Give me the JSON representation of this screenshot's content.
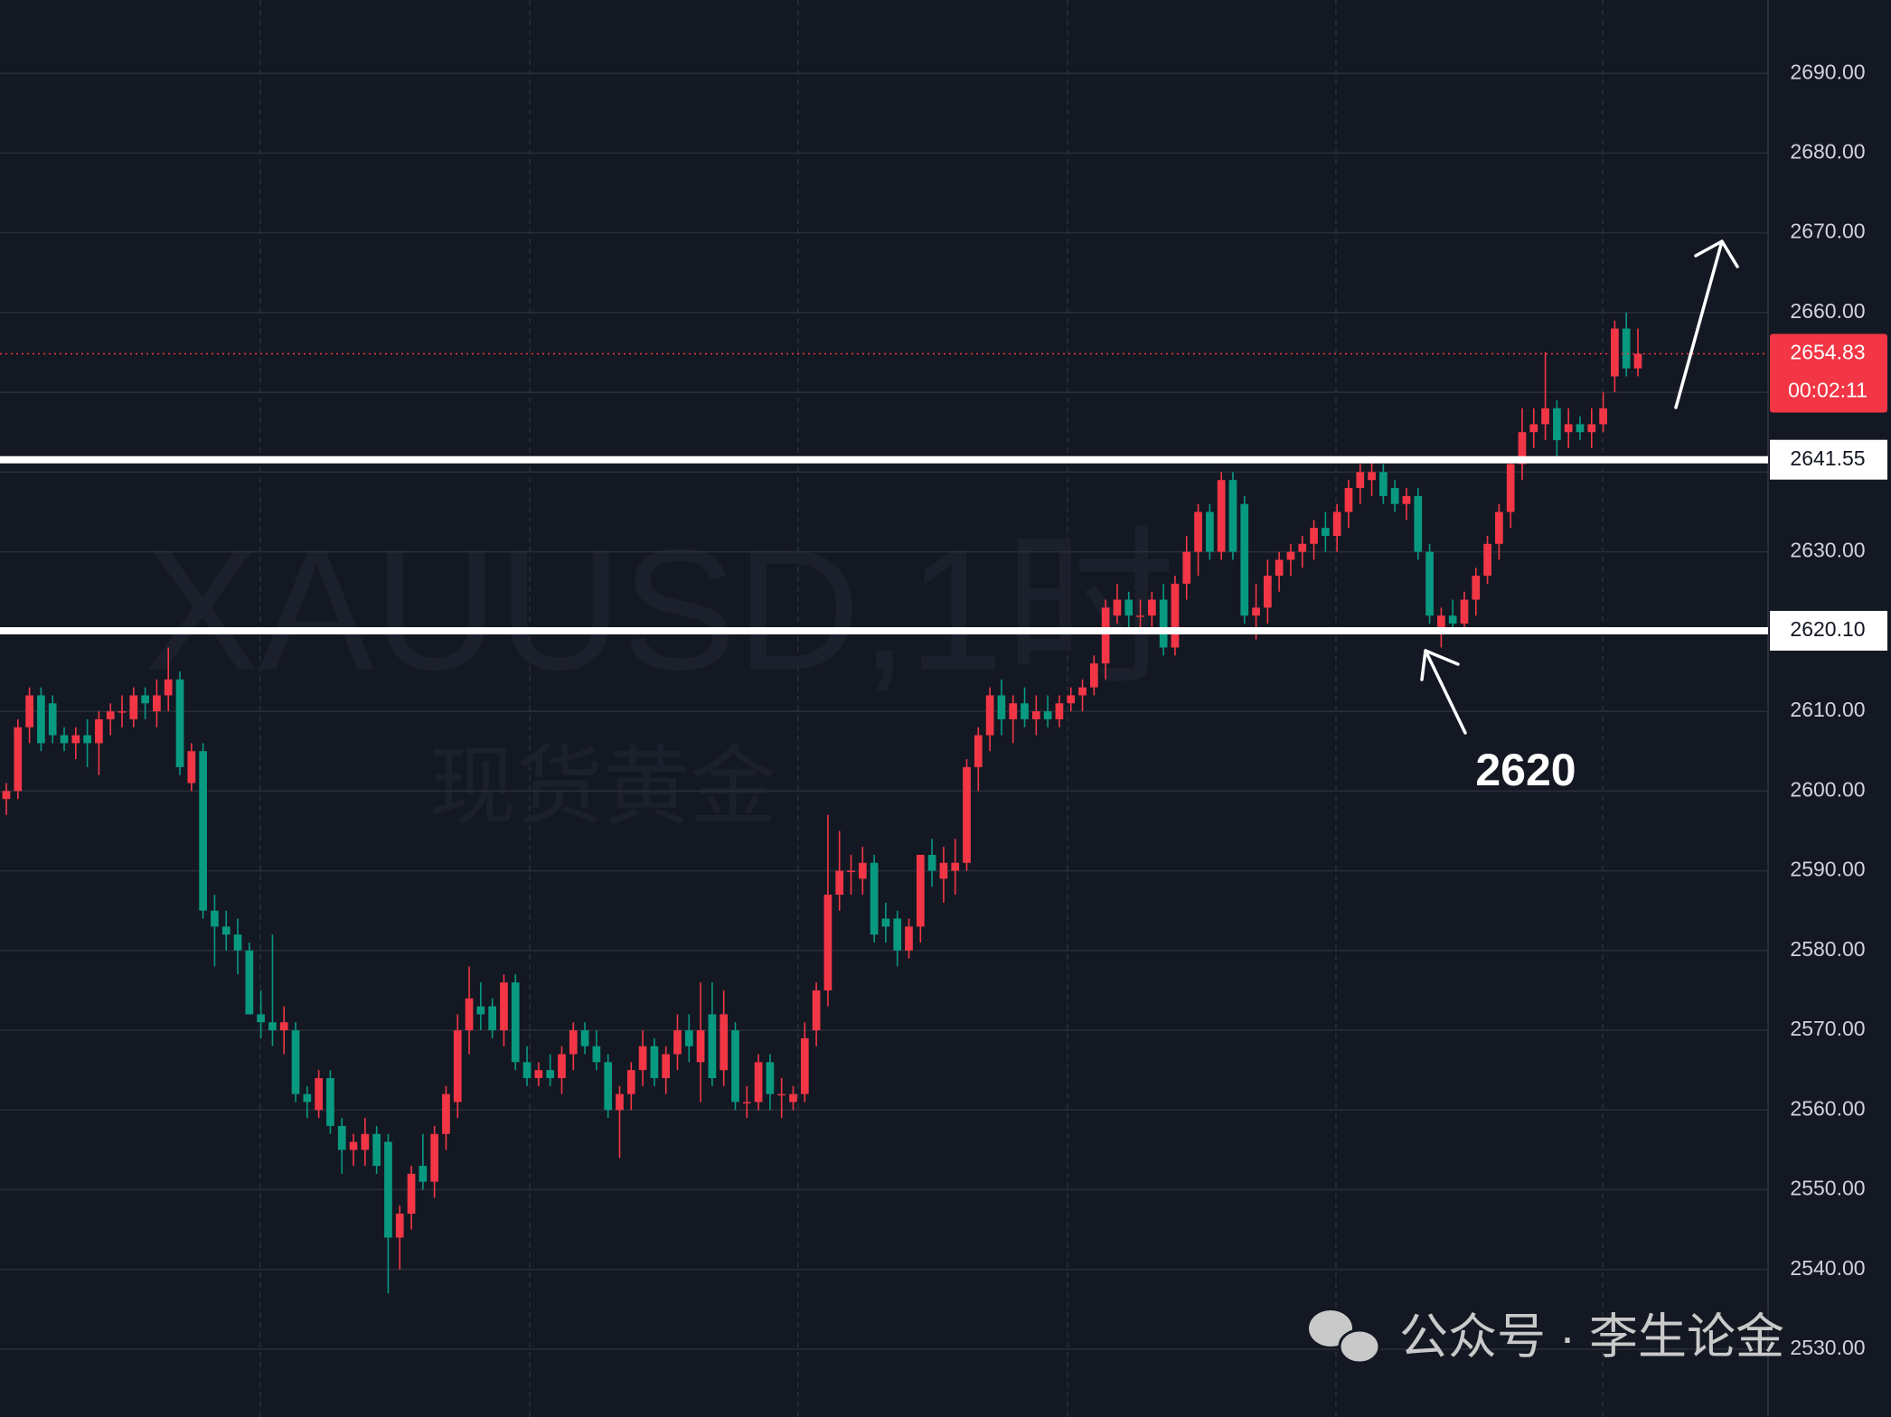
{
  "chart_data": {
    "type": "candlestick",
    "watermark": {
      "symbol": "XAUUSD,1时",
      "name": "现货黄金"
    },
    "annotation": "2620",
    "footer": "公众号 · 李生论金",
    "up_color": "#f23645",
    "down_color": "#089981",
    "ylim": [
      2521.5,
      2699.2
    ],
    "yticks": [
      {
        "value": 2530,
        "label": "2530.00"
      },
      {
        "value": 2540,
        "label": "2540.00"
      },
      {
        "value": 2550,
        "label": "2550.00"
      },
      {
        "value": 2560,
        "label": "2560.00"
      },
      {
        "value": 2570,
        "label": "2570.00"
      },
      {
        "value": 2580,
        "label": "2580.00"
      },
      {
        "value": 2590,
        "label": "2590.00"
      },
      {
        "value": 2600,
        "label": "2600.00"
      },
      {
        "value": 2610,
        "label": "2610.00"
      },
      {
        "value": 2620,
        "label": "2620.00"
      },
      {
        "value": 2630,
        "label": "2630.00"
      },
      {
        "value": 2640,
        "label": "2640.00"
      },
      {
        "value": 2650,
        "label": "2650.00"
      },
      {
        "value": 2660,
        "label": "2660.00"
      },
      {
        "value": 2670,
        "label": "2670.00"
      },
      {
        "value": 2680,
        "label": "2680.00"
      },
      {
        "value": 2690,
        "label": "2690.00"
      }
    ],
    "grid": true,
    "levels": [
      {
        "value": 2641.55
      },
      {
        "value": 2620.1,
        "label": "2620.10"
      }
    ],
    "last_price": {
      "value": 2654.83,
      "countdown": "00:02:11"
    },
    "ohlc": [
      [
        2599,
        2601,
        2597,
        2600
      ],
      [
        2600,
        2609,
        2599,
        2608
      ],
      [
        2608,
        2613,
        2606,
        2612
      ],
      [
        2612,
        2613,
        2605,
        2606
      ],
      [
        2611,
        2612,
        2606,
        2607
      ],
      [
        2607,
        2608,
        2605,
        2606
      ],
      [
        2606,
        2608,
        2604,
        2607
      ],
      [
        2607,
        2609,
        2603,
        2606
      ],
      [
        2606,
        2610,
        2602,
        2609
      ],
      [
        2609,
        2611,
        2607,
        2610
      ],
      [
        2610,
        2612,
        2608,
        2610
      ],
      [
        2609,
        2613,
        2608,
        2612
      ],
      [
        2612,
        2613,
        2609,
        2611
      ],
      [
        2610,
        2614,
        2608,
        2612
      ],
      [
        2612,
        2618,
        2610,
        2614
      ],
      [
        2614,
        2615,
        2602,
        2603
      ],
      [
        2601,
        2606,
        2600,
        2605
      ],
      [
        2605,
        2606,
        2584,
        2585
      ],
      [
        2585,
        2587,
        2578,
        2583
      ],
      [
        2583,
        2585,
        2580,
        2582
      ],
      [
        2582,
        2584,
        2577,
        2580
      ],
      [
        2580,
        2581,
        2572,
        2572
      ],
      [
        2572,
        2575,
        2569,
        2571
      ],
      [
        2571,
        2582,
        2568,
        2570
      ],
      [
        2570,
        2573,
        2567,
        2571
      ],
      [
        2570,
        2571,
        2561,
        2562
      ],
      [
        2562,
        2563,
        2559,
        2561
      ],
      [
        2560,
        2565,
        2559,
        2564
      ],
      [
        2564,
        2565,
        2557,
        2558
      ],
      [
        2558,
        2559,
        2552,
        2555
      ],
      [
        2555,
        2557,
        2553,
        2556
      ],
      [
        2555,
        2559,
        2553,
        2557
      ],
      [
        2557,
        2558,
        2552,
        2553
      ],
      [
        2556,
        2557,
        2537,
        2544
      ],
      [
        2544,
        2548,
        2540,
        2547
      ],
      [
        2547,
        2553,
        2545,
        2552
      ],
      [
        2553,
        2557,
        2550,
        2551
      ],
      [
        2551,
        2558,
        2549,
        2557
      ],
      [
        2557,
        2563,
        2555,
        2562
      ],
      [
        2561,
        2572,
        2559,
        2570
      ],
      [
        2570,
        2578,
        2567,
        2574
      ],
      [
        2573,
        2576,
        2570,
        2572
      ],
      [
        2573,
        2574,
        2569,
        2570
      ],
      [
        2570,
        2577,
        2568,
        2576
      ],
      [
        2576,
        2577,
        2565,
        2566
      ],
      [
        2566,
        2568,
        2563,
        2564
      ],
      [
        2564,
        2566,
        2563,
        2565
      ],
      [
        2565,
        2567,
        2563,
        2564
      ],
      [
        2564,
        2568,
        2562,
        2567
      ],
      [
        2567,
        2571,
        2565,
        2570
      ],
      [
        2570,
        2571,
        2567,
        2568
      ],
      [
        2568,
        2570,
        2565,
        2566
      ],
      [
        2566,
        2567,
        2559,
        2560
      ],
      [
        2560,
        2563,
        2554,
        2562
      ],
      [
        2562,
        2566,
        2560,
        2565
      ],
      [
        2565,
        2570,
        2563,
        2568
      ],
      [
        2568,
        2569,
        2563,
        2564
      ],
      [
        2564,
        2568,
        2562,
        2567
      ],
      [
        2567,
        2572,
        2565,
        2570
      ],
      [
        2570,
        2572,
        2566,
        2568
      ],
      [
        2566,
        2576,
        2561,
        2570
      ],
      [
        2572,
        2576,
        2563,
        2564
      ],
      [
        2565,
        2575,
        2563,
        2572
      ],
      [
        2570,
        2571,
        2560,
        2561
      ],
      [
        2561,
        2563,
        2559,
        2561
      ],
      [
        2561,
        2567,
        2560,
        2566
      ],
      [
        2566,
        2567,
        2560,
        2562
      ],
      [
        2562,
        2564,
        2559,
        2562
      ],
      [
        2561,
        2563,
        2560,
        2562
      ],
      [
        2562,
        2571,
        2561,
        2569
      ],
      [
        2570,
        2576,
        2568,
        2575
      ],
      [
        2575,
        2597,
        2573,
        2587
      ],
      [
        2587,
        2595,
        2585,
        2590
      ],
      [
        2590,
        2592,
        2587,
        2590
      ],
      [
        2589,
        2593,
        2587,
        2591
      ],
      [
        2591,
        2592,
        2581,
        2582
      ],
      [
        2584,
        2586,
        2581,
        2583
      ],
      [
        2584,
        2585,
        2578,
        2580
      ],
      [
        2580,
        2584,
        2579,
        2583
      ],
      [
        2583,
        2592,
        2581,
        2592
      ],
      [
        2592,
        2594,
        2588,
        2590
      ],
      [
        2589,
        2593,
        2586,
        2591
      ],
      [
        2590,
        2594,
        2587,
        2591
      ],
      [
        2591,
        2604,
        2590,
        2603
      ],
      [
        2603,
        2608,
        2600,
        2607
      ],
      [
        2607,
        2613,
        2605,
        2612
      ],
      [
        2612,
        2614,
        2607,
        2609
      ],
      [
        2609,
        2612,
        2606,
        2611
      ],
      [
        2611,
        2613,
        2608,
        2609
      ],
      [
        2609,
        2612,
        2607,
        2610
      ],
      [
        2610,
        2612,
        2608,
        2609
      ],
      [
        2609,
        2612,
        2608,
        2611
      ],
      [
        2611,
        2613,
        2610,
        2612
      ],
      [
        2612,
        2614,
        2610,
        2613
      ],
      [
        2613,
        2617,
        2612,
        2616
      ],
      [
        2616,
        2624,
        2614,
        2623
      ],
      [
        2622,
        2626,
        2621,
        2624
      ],
      [
        2624,
        2625,
        2620,
        2622
      ],
      [
        2622,
        2624,
        2620,
        2622
      ],
      [
        2622,
        2625,
        2620,
        2624
      ],
      [
        2624,
        2626,
        2617,
        2618
      ],
      [
        2618,
        2627,
        2617,
        2626
      ],
      [
        2626,
        2632,
        2624,
        2630
      ],
      [
        2630,
        2636,
        2627,
        2635
      ],
      [
        2635,
        2636,
        2629,
        2630
      ],
      [
        2630,
        2640,
        2629,
        2639
      ],
      [
        2639,
        2640,
        2629,
        2630
      ],
      [
        2636,
        2637,
        2621,
        2622
      ],
      [
        2622,
        2626,
        2619,
        2623
      ],
      [
        2623,
        2629,
        2621,
        2627
      ],
      [
        2627,
        2630,
        2625,
        2629
      ],
      [
        2629,
        2631,
        2627,
        2630
      ],
      [
        2630,
        2632,
        2628,
        2631
      ],
      [
        2631,
        2634,
        2629,
        2633
      ],
      [
        2633,
        2635,
        2630,
        2632
      ],
      [
        2632,
        2636,
        2630,
        2635
      ],
      [
        2635,
        2639,
        2633,
        2638
      ],
      [
        2638,
        2641,
        2636,
        2640
      ],
      [
        2639,
        2642,
        2637,
        2640
      ],
      [
        2640,
        2641,
        2636,
        2637
      ],
      [
        2638,
        2639,
        2635,
        2636
      ],
      [
        2636,
        2638,
        2634,
        2637
      ],
      [
        2637,
        2638,
        2629,
        2630
      ],
      [
        2630,
        2631,
        2621,
        2622
      ],
      [
        2620,
        2623,
        2618,
        2622
      ],
      [
        2622,
        2624,
        2620,
        2621
      ],
      [
        2621,
        2625,
        2620,
        2624
      ],
      [
        2624,
        2628,
        2622,
        2627
      ],
      [
        2627,
        2632,
        2626,
        2631
      ],
      [
        2631,
        2636,
        2629,
        2635
      ],
      [
        2635,
        2642,
        2633,
        2641
      ],
      [
        2641,
        2648,
        2639,
        2645
      ],
      [
        2645,
        2648,
        2643,
        2646
      ],
      [
        2646,
        2655,
        2644,
        2648
      ],
      [
        2648,
        2649,
        2642,
        2644
      ],
      [
        2645,
        2648,
        2643,
        2646
      ],
      [
        2646,
        2647,
        2644,
        2645
      ],
      [
        2645,
        2648,
        2643,
        2646
      ],
      [
        2646,
        2650,
        2645,
        2648
      ],
      [
        2652,
        2659,
        2650,
        2658
      ],
      [
        2658,
        2660,
        2652,
        2653
      ],
      [
        2653,
        2658,
        2652,
        2654.83
      ]
    ]
  }
}
